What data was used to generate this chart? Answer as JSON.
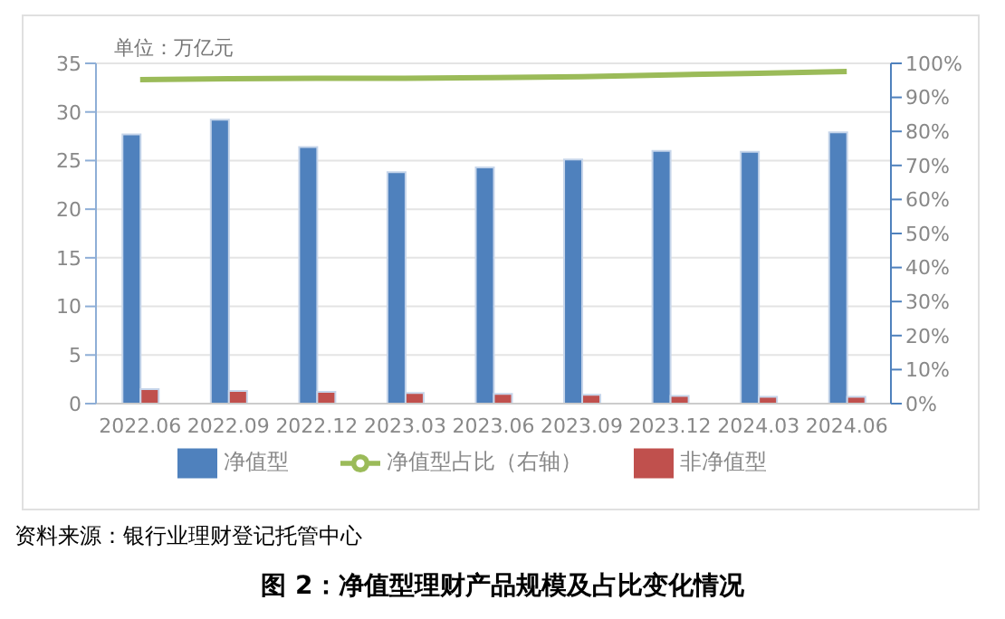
{
  "chart_data": {
    "type": "bar",
    "title": "图 2：净值型理财产品规模及占比变化情况",
    "annotations": [
      "单位：万亿元",
      "资料来源：银行业理财登记托管中心"
    ],
    "categories": [
      "2022.06",
      "2022.09",
      "2022.12",
      "2023.03",
      "2023.06",
      "2023.09",
      "2023.12",
      "2024.03",
      "2024.06"
    ],
    "series": [
      {
        "name": "净值型",
        "color": "#4f81bd",
        "values": [
          27.7,
          29.2,
          26.4,
          23.8,
          24.3,
          25.1,
          26.0,
          25.9,
          27.9
        ]
      },
      {
        "name": "非净值型",
        "color": "#c0504d",
        "values": [
          1.5,
          1.3,
          1.2,
          1.1,
          1.0,
          0.9,
          0.8,
          0.7,
          0.7
        ]
      },
      {
        "name": "净值型占比（右轴）",
        "type": "line",
        "axis": "y2",
        "color": "#9bbb59",
        "values": [
          95.2,
          95.5,
          95.6,
          95.6,
          95.8,
          96.1,
          96.6,
          97.1,
          97.6
        ]
      }
    ],
    "ylim": [
      0,
      35
    ],
    "yticks": [
      0,
      5,
      10,
      15,
      20,
      25,
      30,
      35
    ],
    "y2lim": [
      0,
      100
    ],
    "y2ticks": [
      {
        "value": 0,
        "label": "0%"
      },
      {
        "value": 10,
        "label": "10%"
      },
      {
        "value": 20,
        "label": "20%"
      },
      {
        "value": 30,
        "label": "30%"
      },
      {
        "value": 40,
        "label": "40%"
      },
      {
        "value": 50,
        "label": "50%"
      },
      {
        "value": 60,
        "label": "60%"
      },
      {
        "value": 70,
        "label": "70%"
      },
      {
        "value": 80,
        "label": "80%"
      },
      {
        "value": 90,
        "label": "90%"
      },
      {
        "value": 100,
        "label": "100%"
      }
    ],
    "grid": "y",
    "legend": "bottom",
    "marker": "none"
  }
}
